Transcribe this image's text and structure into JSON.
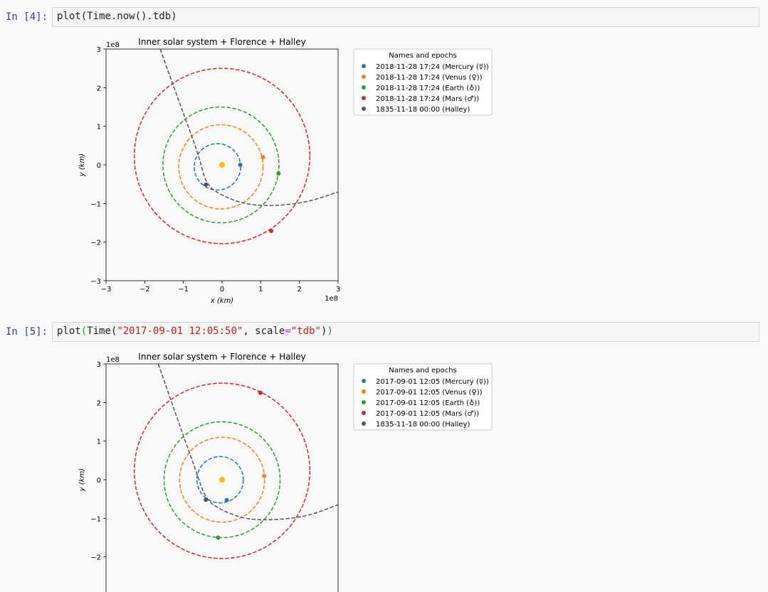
{
  "cells": [
    {
      "prompt": "In [4]:",
      "code": [
        {
          "t": "plot(Time.now().tdb)",
          "c": "plain"
        }
      ],
      "chart": {
        "title": "Inner solar system + Florence + Halley",
        "xlabel": "x (km)",
        "ylabel": "y (km)",
        "offset_label": "1e8",
        "xlim": [
          -3,
          3
        ],
        "ylim": [
          -3,
          3
        ],
        "xticks": [
          "−3",
          "−2",
          "−1",
          "0",
          "1",
          "2",
          "3"
        ],
        "yticks": [
          "3",
          "2",
          "1",
          "0",
          "−1",
          "−2",
          "−3"
        ],
        "legend_title": "Names and epochs",
        "legend": [
          {
            "label": "2018-11-28 17:24 (Mercury (☿))",
            "color": "#1f77b4"
          },
          {
            "label": "2018-11-28 17:24 (Venus (♀))",
            "color": "#ff7f0e"
          },
          {
            "label": "2018-11-28 17:24 (Earth (♁))",
            "color": "#2ca02c"
          },
          {
            "label": "2018-11-28 17:24 (Mars (♂))",
            "color": "#d62728"
          },
          {
            "label": "1835-11-18 00:00 (Halley)",
            "color": "#555555"
          }
        ]
      }
    },
    {
      "prompt": "In [5]:",
      "code": [
        {
          "t": "plot",
          "c": "plain"
        },
        {
          "t": "(",
          "c": "paren"
        },
        {
          "t": "Time(",
          "c": "plain"
        },
        {
          "t": "\"2017-09-01 12:05:50\"",
          "c": "str"
        },
        {
          "t": ", scale",
          "c": "plain"
        },
        {
          "t": "=",
          "c": "op"
        },
        {
          "t": "\"tdb\"",
          "c": "str"
        },
        {
          "t": ")",
          "c": "plain"
        },
        {
          "t": ")",
          "c": "paren"
        }
      ],
      "chart": {
        "title": "Inner solar system + Florence + Halley",
        "xlabel": "",
        "ylabel": "y (km)",
        "offset_label": "1e8",
        "xlim": [
          -3,
          3
        ],
        "ylim": [
          -3,
          3
        ],
        "xticks": [],
        "yticks": [
          "3",
          "2",
          "1",
          "0",
          "−1",
          "−2"
        ],
        "legend_title": "Names and epochs",
        "legend": [
          {
            "label": "2017-09-01 12:05 (Mercury (☿))",
            "color": "#1f77b4"
          },
          {
            "label": "2017-09-01 12:05 (Venus (♀))",
            "color": "#ff7f0e"
          },
          {
            "label": "2017-09-01 12:05 (Earth (♁))",
            "color": "#2ca02c"
          },
          {
            "label": "2017-09-01 12:05 (Mars (♂))",
            "color": "#d62728"
          },
          {
            "label": "1835-11-18 00:00 (Halley)",
            "color": "#555555"
          }
        ]
      }
    }
  ],
  "chart_data": [
    {
      "type": "scatter",
      "title": "Inner solar system + Florence + Halley",
      "xlabel": "x (km)",
      "ylabel": "y (km)",
      "xlim": [
        -300000000.0,
        300000000.0
      ],
      "ylim": [
        -300000000.0,
        300000000.0
      ],
      "sun": {
        "x": 0,
        "y": 0,
        "color": "#f5c000"
      },
      "orbits": [
        {
          "name": "Mercury",
          "color": "#1f77b4",
          "cx": -0.12,
          "cy": -0.05,
          "rx": 0.6,
          "ry": 0.6
        },
        {
          "name": "Venus",
          "color": "#ff7f0e",
          "cx": -0.03,
          "cy": -0.05,
          "rx": 1.09,
          "ry": 1.09
        },
        {
          "name": "Earth",
          "color": "#2ca02c",
          "cx": -0.03,
          "cy": 0.0,
          "rx": 1.5,
          "ry": 1.5
        },
        {
          "name": "Mars",
          "color": "#d62728",
          "cx": 0.0,
          "cy": 0.23,
          "rx": 2.27,
          "ry": 2.27
        }
      ],
      "points": [
        {
          "name": "Mercury",
          "x": 0.47,
          "y": 0.0,
          "color": "#1f77b4"
        },
        {
          "name": "Venus",
          "x": 1.06,
          "y": 0.2,
          "color": "#ff7f0e"
        },
        {
          "name": "Earth",
          "x": 1.46,
          "y": -0.22,
          "color": "#2ca02c"
        },
        {
          "name": "Mars",
          "x": 1.27,
          "y": -1.71,
          "color": "#d62728"
        },
        {
          "name": "Halley",
          "x": -0.42,
          "y": -0.51,
          "color": "#555555"
        }
      ],
      "halley_path": [
        [
          -1.6,
          3.0
        ],
        [
          -1.1,
          1.6
        ],
        [
          -0.6,
          0.25
        ],
        [
          -0.42,
          -0.51
        ],
        [
          0.0,
          -0.8
        ],
        [
          0.6,
          -1.02
        ],
        [
          1.3,
          -1.07
        ],
        [
          2.2,
          -0.97
        ],
        [
          3.0,
          -0.7
        ]
      ]
    },
    {
      "type": "scatter",
      "title": "Inner solar system + Florence + Halley",
      "xlabel": "",
      "ylabel": "y (km)",
      "xlim": [
        -300000000.0,
        300000000.0
      ],
      "ylim": [
        -300000000.0,
        300000000.0
      ],
      "sun": {
        "x": 0,
        "y": 0,
        "color": "#f5c000"
      },
      "orbits": [
        {
          "name": "Mercury",
          "color": "#1f77b4",
          "cx": -0.05,
          "cy": 0.0,
          "rx": 0.6,
          "ry": 0.6
        },
        {
          "name": "Venus",
          "color": "#ff7f0e",
          "cx": 0.0,
          "cy": 0.0,
          "rx": 1.1,
          "ry": 1.1
        },
        {
          "name": "Earth",
          "color": "#2ca02c",
          "cx": 0.0,
          "cy": 0.0,
          "rx": 1.5,
          "ry": 1.5
        },
        {
          "name": "Mars",
          "color": "#d62728",
          "cx": 0.0,
          "cy": 0.23,
          "rx": 2.27,
          "ry": 2.27
        }
      ],
      "points": [
        {
          "name": "Mercury",
          "x": 0.12,
          "y": -0.53,
          "color": "#1f77b4"
        },
        {
          "name": "Venus",
          "x": 1.09,
          "y": 0.1,
          "color": "#ff7f0e"
        },
        {
          "name": "Earth",
          "x": -0.1,
          "y": -1.5,
          "color": "#2ca02c"
        },
        {
          "name": "Mars",
          "x": 0.99,
          "y": 2.25,
          "color": "#d62728"
        },
        {
          "name": "Halley",
          "x": -0.42,
          "y": -0.52,
          "color": "#555555"
        }
      ],
      "halley_path": [
        [
          -1.65,
          3.0
        ],
        [
          -1.2,
          1.7
        ],
        [
          -0.7,
          0.3
        ],
        [
          -0.42,
          -0.52
        ],
        [
          0.0,
          -0.8
        ],
        [
          0.6,
          -1.02
        ],
        [
          1.3,
          -1.05
        ],
        [
          2.2,
          -0.95
        ],
        [
          3.0,
          -0.65
        ]
      ]
    }
  ]
}
